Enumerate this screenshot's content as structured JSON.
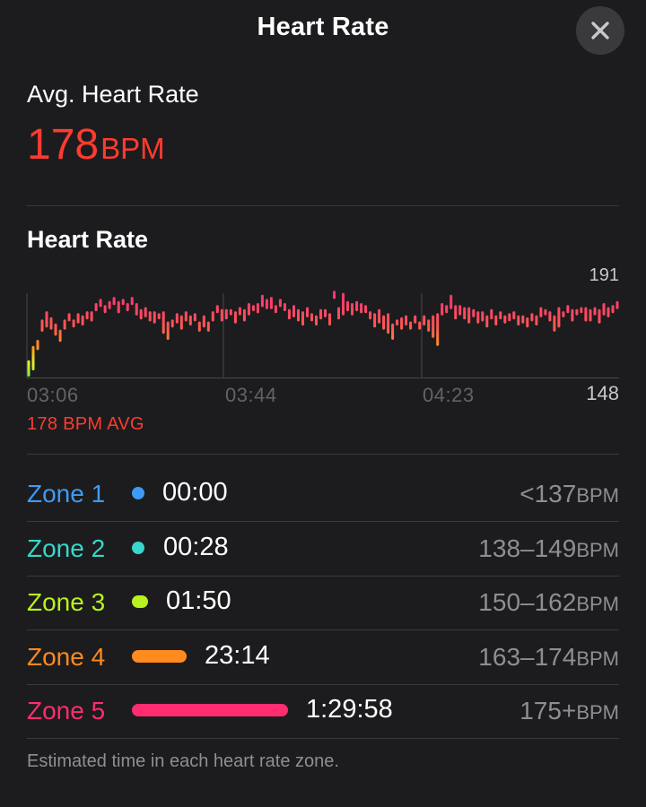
{
  "header": {
    "title": "Heart Rate",
    "close_icon": "close-icon"
  },
  "summary": {
    "label": "Avg. Heart Rate",
    "value": "178",
    "unit": "BPM"
  },
  "chart_section": {
    "title": "Heart Rate",
    "avg_note": "178 BPM AVG"
  },
  "chart_data": {
    "type": "bar",
    "y_max_label": "191",
    "y_min_label": "148",
    "ylim": [
      148,
      191
    ],
    "x_tick_labels": [
      "03:06",
      "03:44",
      "04:23"
    ],
    "bars": [
      [
        148,
        156
      ],
      [
        151,
        163
      ],
      [
        161,
        166
      ],
      [
        170,
        176
      ],
      [
        172,
        180
      ],
      [
        171,
        177
      ],
      [
        168,
        174
      ],
      [
        165,
        171
      ],
      [
        171,
        176
      ],
      [
        175,
        179
      ],
      [
        172,
        176
      ],
      [
        174,
        179
      ],
      [
        173,
        178
      ],
      [
        176,
        180
      ],
      [
        175,
        180
      ],
      [
        180,
        184
      ],
      [
        182,
        186
      ],
      [
        179,
        183
      ],
      [
        181,
        185
      ],
      [
        183,
        187
      ],
      [
        179,
        185
      ],
      [
        183,
        186
      ],
      [
        180,
        184
      ],
      [
        183,
        187
      ],
      [
        178,
        184
      ],
      [
        176,
        181
      ],
      [
        177,
        182
      ],
      [
        175,
        180
      ],
      [
        174,
        180
      ],
      [
        176,
        179
      ],
      [
        169,
        180
      ],
      [
        166,
        175
      ],
      [
        172,
        176
      ],
      [
        174,
        179
      ],
      [
        171,
        178
      ],
      [
        175,
        180
      ],
      [
        173,
        178
      ],
      [
        175,
        179
      ],
      [
        170,
        175
      ],
      [
        172,
        178
      ],
      [
        170,
        175
      ],
      [
        175,
        180
      ],
      [
        179,
        183
      ],
      [
        175,
        181
      ],
      [
        176,
        181
      ],
      [
        178,
        181
      ],
      [
        174,
        180
      ],
      [
        178,
        182
      ],
      [
        175,
        181
      ],
      [
        178,
        184
      ],
      [
        180,
        183
      ],
      [
        179,
        184
      ],
      [
        182,
        188
      ],
      [
        181,
        186
      ],
      [
        181,
        187
      ],
      [
        179,
        183
      ],
      [
        182,
        186
      ],
      [
        180,
        184
      ],
      [
        176,
        181
      ],
      [
        177,
        183
      ],
      [
        175,
        181
      ],
      [
        173,
        180
      ],
      [
        177,
        182
      ],
      [
        175,
        179
      ],
      [
        173,
        178
      ],
      [
        176,
        181
      ],
      [
        177,
        181
      ],
      [
        173,
        179
      ],
      [
        186,
        190
      ],
      [
        176,
        182
      ],
      [
        178,
        189
      ],
      [
        180,
        185
      ],
      [
        178,
        184
      ],
      [
        180,
        185
      ],
      [
        179,
        184
      ],
      [
        179,
        183
      ],
      [
        176,
        180
      ],
      [
        172,
        179
      ],
      [
        174,
        181
      ],
      [
        171,
        178
      ],
      [
        169,
        179
      ],
      [
        166,
        174
      ],
      [
        173,
        176
      ],
      [
        171,
        177
      ],
      [
        173,
        178
      ],
      [
        171,
        175
      ],
      [
        174,
        178
      ],
      [
        171,
        175
      ],
      [
        173,
        178
      ],
      [
        170,
        176
      ],
      [
        167,
        178
      ],
      [
        163,
        179
      ],
      [
        178,
        184
      ],
      [
        179,
        183
      ],
      [
        181,
        188
      ],
      [
        176,
        183
      ],
      [
        178,
        183
      ],
      [
        176,
        182
      ],
      [
        174,
        182
      ],
      [
        177,
        181
      ],
      [
        174,
        180
      ],
      [
        175,
        180
      ],
      [
        172,
        178
      ],
      [
        176,
        181
      ],
      [
        173,
        178
      ],
      [
        176,
        180
      ],
      [
        174,
        178
      ],
      [
        175,
        179
      ],
      [
        176,
        180
      ],
      [
        173,
        178
      ],
      [
        174,
        178
      ],
      [
        172,
        177
      ],
      [
        175,
        179
      ],
      [
        173,
        178
      ],
      [
        177,
        182
      ],
      [
        178,
        181
      ],
      [
        175,
        180
      ],
      [
        170,
        178
      ],
      [
        172,
        182
      ],
      [
        177,
        180
      ],
      [
        179,
        183
      ],
      [
        175,
        181
      ],
      [
        178,
        181
      ],
      [
        179,
        182
      ],
      [
        175,
        182
      ],
      [
        175,
        181
      ],
      [
        178,
        182
      ],
      [
        174,
        181
      ],
      [
        178,
        184
      ],
      [
        177,
        182
      ],
      [
        179,
        183
      ],
      [
        181,
        185
      ]
    ]
  },
  "zones": [
    {
      "label": "Zone 1",
      "color": "#3e9bf5",
      "time": "00:00",
      "range": "<137",
      "unit": "BPM",
      "fraction": 0
    },
    {
      "label": "Zone 2",
      "color": "#39d6cb",
      "time": "00:28",
      "range": "138–149",
      "unit": "BPM",
      "fraction": 0.005
    },
    {
      "label": "Zone 3",
      "color": "#b8f21f",
      "time": "01:50",
      "range": "150–162",
      "unit": "BPM",
      "fraction": 0.02
    },
    {
      "label": "Zone 4",
      "color": "#ff8a1e",
      "time": "23:14",
      "range": "163–174",
      "unit": "BPM",
      "fraction": 0.21
    },
    {
      "label": "Zone 5",
      "color": "#ff2d6f",
      "time": "1:29:58",
      "range": "175+",
      "unit": "BPM",
      "fraction": 0.77
    }
  ],
  "footnote": "Estimated time in each heart rate zone."
}
